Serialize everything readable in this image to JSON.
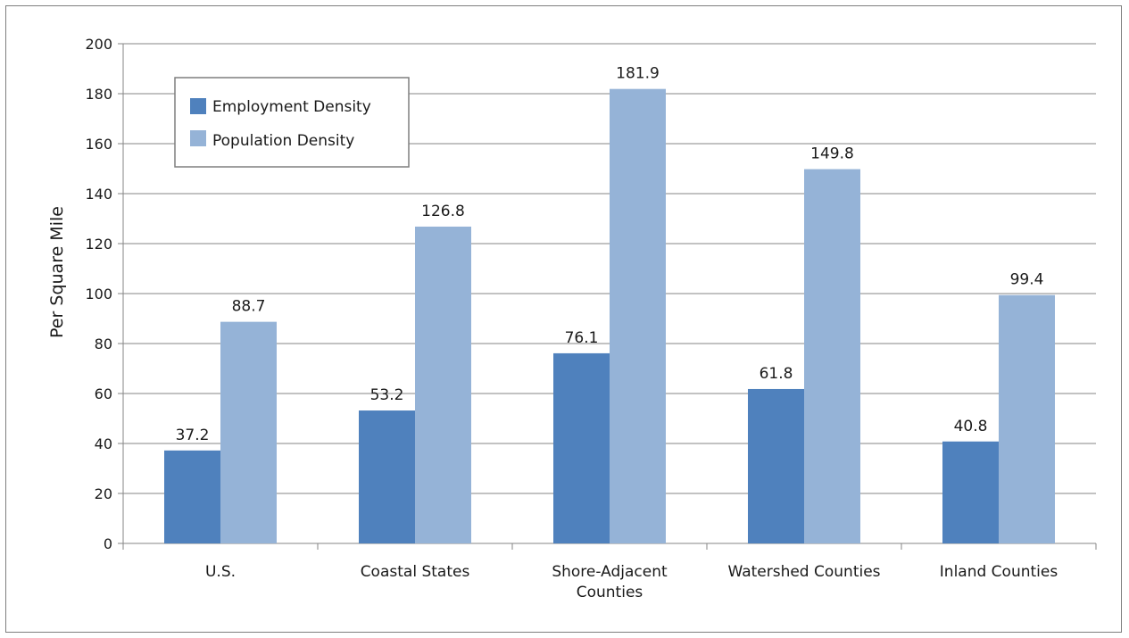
{
  "chart_data": {
    "type": "bar",
    "title": "",
    "xlabel": "",
    "ylabel": "Per Square Mile",
    "ylim": [
      0,
      200
    ],
    "yticks": [
      0,
      20,
      40,
      60,
      80,
      100,
      120,
      140,
      160,
      180,
      200
    ],
    "grid": true,
    "legend_position": "top-left",
    "categories": [
      [
        "U.S."
      ],
      [
        "Coastal States"
      ],
      [
        "Shore-Adjacent",
        "Counties"
      ],
      [
        "Watershed Counties"
      ],
      [
        "Inland Counties"
      ]
    ],
    "series": [
      {
        "name": "Employment Density",
        "color": "#4f81bd",
        "values": [
          37.2,
          53.2,
          76.1,
          61.8,
          40.8
        ]
      },
      {
        "name": "Population Density",
        "color": "#95b3d7",
        "values": [
          88.7,
          126.8,
          181.9,
          149.8,
          99.4
        ]
      }
    ]
  }
}
